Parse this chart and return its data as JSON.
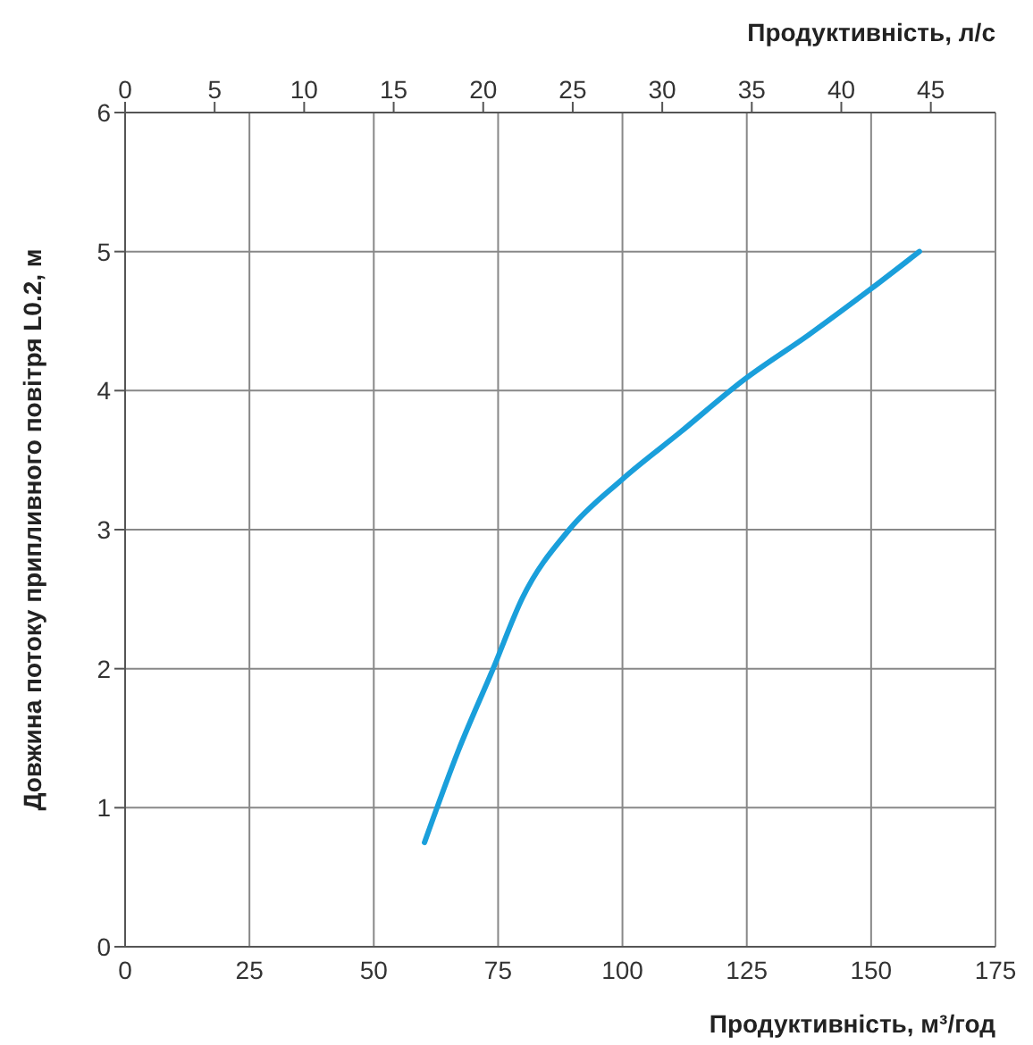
{
  "chart_data": {
    "type": "line",
    "xlabel": "Продуктивність, м³/год",
    "x2label": "Продуктивність, л/с",
    "ylabel": "Довжина потоку припливного повітря L0.2, м",
    "xlim": [
      0,
      175
    ],
    "xticks": [
      0,
      25,
      50,
      75,
      100,
      125,
      150,
      175
    ],
    "x2lim": [
      0,
      48.61
    ],
    "x2ticks": [
      0,
      5,
      10,
      15,
      20,
      25,
      30,
      35,
      40,
      45
    ],
    "ylim": [
      0,
      6
    ],
    "yticks": [
      0,
      1,
      2,
      3,
      4,
      5,
      6
    ],
    "grid": true,
    "legend": false,
    "marker": "none",
    "line_style": "solid",
    "series": [
      {
        "color": "#1a9fdb",
        "x": [
          60.2,
          67,
          74,
          79.9,
          89.3,
          99.9,
          111.6,
          124.5,
          137.4,
          149.9,
          159.7
        ],
        "values": [
          0.75,
          1.41,
          2.0,
          2.51,
          3.0,
          3.36,
          3.7,
          4.08,
          4.4,
          4.73,
          5.0
        ]
      }
    ]
  }
}
